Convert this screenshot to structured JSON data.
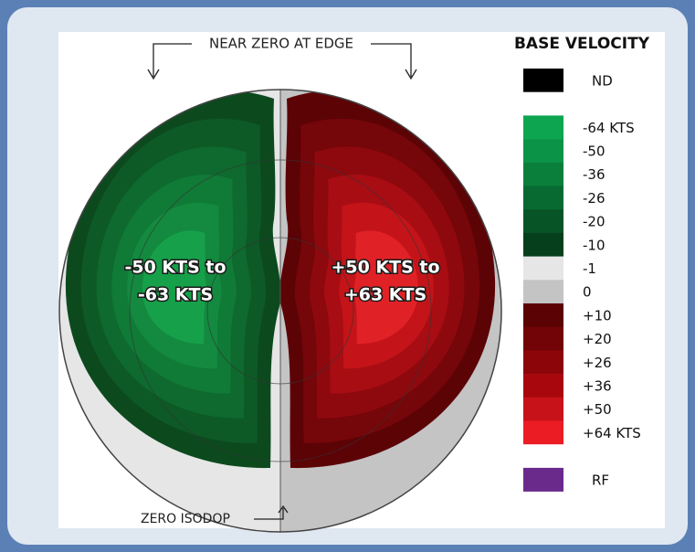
{
  "title": "BASE VELOCITY",
  "annotations": {
    "top": "NEAR ZERO AT EDGE",
    "bottom": "ZERO ISODOP"
  },
  "lobes": [
    {
      "lines": [
        "-50 KTS to",
        "-63 KTS"
      ],
      "colors": [
        "#0c4a1e",
        "#0d5a26",
        "#0e6a2e",
        "#107a37",
        "#138a3f",
        "#17a04a"
      ]
    },
    {
      "lines": [
        "+50 KTS to",
        "+63 KTS"
      ],
      "colors": [
        "#5c0306",
        "#75060a",
        "#8e090e",
        "#a80d13",
        "#c41419",
        "#e02227"
      ]
    }
  ],
  "legend": [
    {
      "color": "#000000",
      "label": "ND"
    },
    {
      "color": "#ffffff"
    },
    {
      "color": "#0ea550",
      "label": "-64 KTS"
    },
    {
      "color": "#0b9447",
      "label": "-50"
    },
    {
      "color": "#0a7f3b",
      "label": "-36"
    },
    {
      "color": "#086a31",
      "label": "-26"
    },
    {
      "color": "#075527",
      "label": "-20"
    },
    {
      "color": "#063f1c",
      "label": "-10"
    },
    {
      "color": "#e6e6e6",
      "label": "-1"
    },
    {
      "color": "#c4c4c4",
      "label": "0"
    },
    {
      "color": "#5a0204",
      "label": "+10"
    },
    {
      "color": "#720306",
      "label": "+20"
    },
    {
      "color": "#8c0508",
      "label": "+26"
    },
    {
      "color": "#a8080d",
      "label": "+36"
    },
    {
      "color": "#c81219",
      "label": "+50"
    },
    {
      "color": "#ec1c24",
      "label": "+64 KTS"
    },
    {
      "color": "#ffffff"
    },
    {
      "color": "#6a2a8c",
      "label": "RF"
    }
  ]
}
